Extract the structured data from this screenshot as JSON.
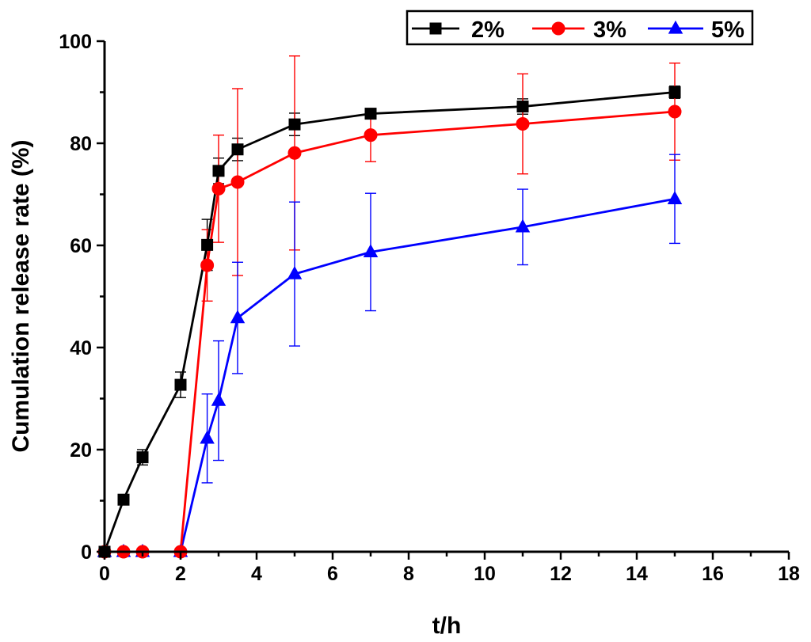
{
  "chart_data": {
    "type": "line",
    "title": "",
    "xlabel": "t/h",
    "ylabel": "Cumulation release rate (%)",
    "xlim": [
      0,
      18
    ],
    "ylim": [
      0,
      100
    ],
    "xticks": [
      0,
      2,
      4,
      6,
      8,
      10,
      12,
      14,
      16,
      18
    ],
    "yticks": [
      0,
      20,
      40,
      60,
      80,
      100
    ],
    "x_tick_labels": [
      "0",
      "2",
      "4",
      "6",
      "8",
      "10",
      "12",
      "14",
      "16",
      "18"
    ],
    "y_tick_labels": [
      "0",
      "20",
      "40",
      "60",
      "80",
      "100"
    ],
    "legend_position": "top-right",
    "series": [
      {
        "name": "2%",
        "color": "#000000",
        "marker": "square",
        "x": [
          0,
          0.5,
          1,
          2,
          2.7,
          3,
          3.5,
          5,
          7,
          11,
          15
        ],
        "values": [
          0,
          10.2,
          18.5,
          32.7,
          60.1,
          74.6,
          78.8,
          83.7,
          85.8,
          87.2,
          90.0
        ],
        "errors": [
          0,
          1.0,
          1.5,
          2.5,
          5.0,
          2.5,
          2.2,
          2.2,
          0.8,
          1.5,
          1.2
        ]
      },
      {
        "name": "3%",
        "color": "#ff0000",
        "marker": "circle",
        "x": [
          0,
          0.5,
          1,
          2,
          2.7,
          3,
          3.5,
          5,
          7,
          11,
          15
        ],
        "values": [
          0,
          0,
          0,
          0,
          56.1,
          71.1,
          72.4,
          78.1,
          81.6,
          83.8,
          86.2
        ],
        "errors": [
          0,
          0,
          0,
          0,
          7.0,
          10.5,
          18.3,
          19.0,
          5.2,
          9.8,
          9.5
        ]
      },
      {
        "name": "5%",
        "color": "#0000ff",
        "marker": "triangle",
        "x": [
          0,
          0.5,
          1,
          2,
          2.7,
          3,
          3.5,
          5,
          7,
          11,
          15
        ],
        "values": [
          0,
          0,
          0,
          0,
          22.2,
          29.6,
          45.8,
          54.4,
          58.7,
          63.6,
          69.1
        ],
        "errors": [
          0,
          0,
          0,
          0,
          8.7,
          11.7,
          10.9,
          14.1,
          11.5,
          7.4,
          8.7
        ]
      }
    ]
  }
}
